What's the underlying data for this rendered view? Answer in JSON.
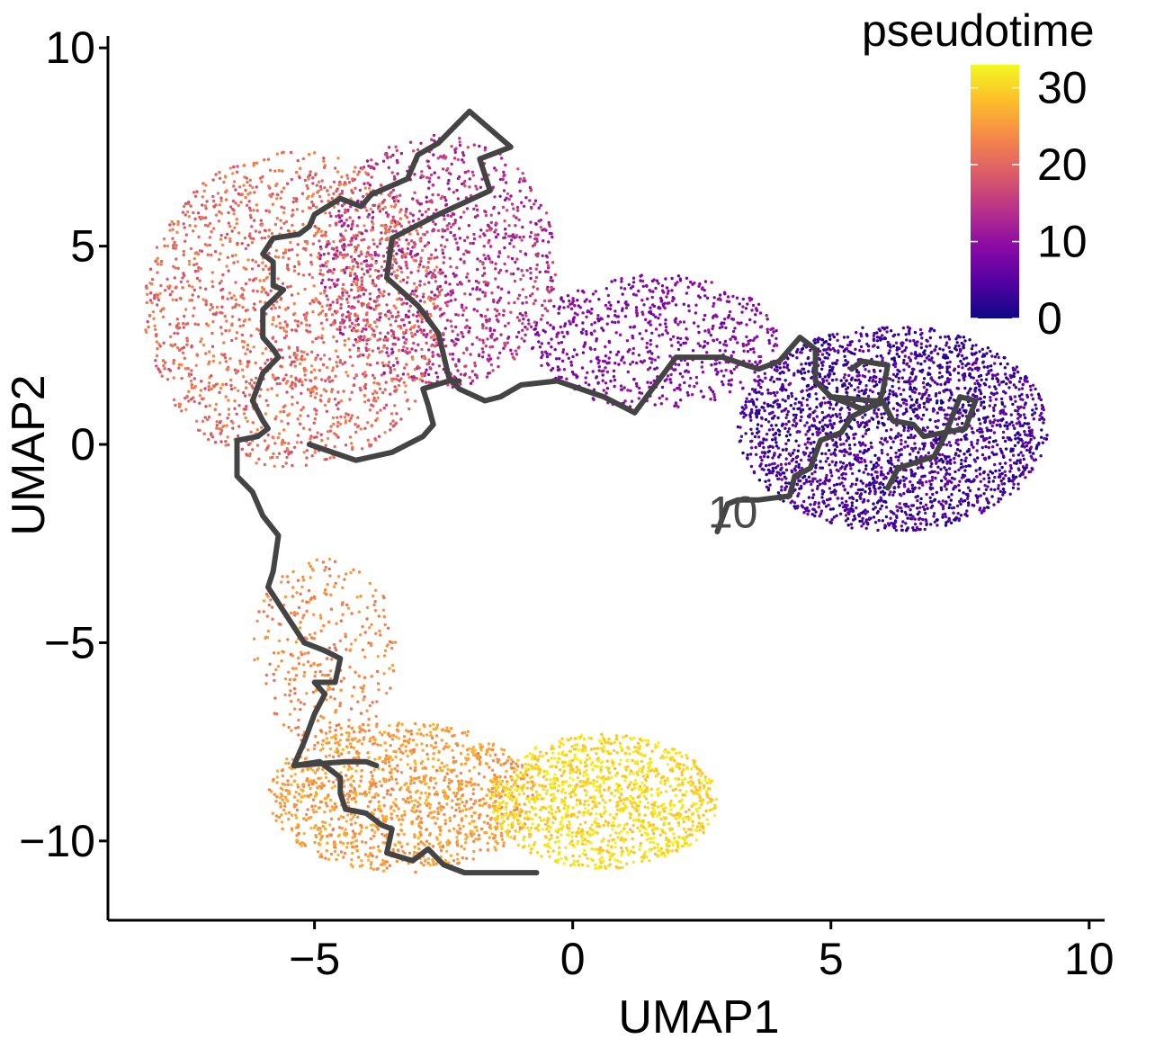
{
  "chart_data": {
    "type": "scatter",
    "xlabel": "UMAP1",
    "ylabel": "UMAP2",
    "xlim": [
      -9.0,
      10.3
    ],
    "ylim": [
      -12.0,
      10.3
    ],
    "x_ticks": [
      -5,
      0,
      5,
      10
    ],
    "y_ticks": [
      -10,
      -5,
      0,
      5,
      10
    ],
    "x_tick_labels": [
      "−5",
      "0",
      "5",
      "10"
    ],
    "y_tick_labels": [
      "−10",
      "−5",
      "0",
      "5",
      "10"
    ],
    "grid": false,
    "legend": {
      "title": "pseudotime",
      "position": "top-right",
      "type": "colorbar",
      "ticks": [
        0,
        10,
        20,
        30
      ],
      "labels": [
        "0",
        "10",
        "20",
        "30"
      ],
      "range": [
        0,
        33
      ]
    },
    "colormap": [
      "#0d0887",
      "#5302a3",
      "#8b0aa5",
      "#b83289",
      "#db5c68",
      "#f48849",
      "#febd2a",
      "#f0f921"
    ],
    "trajectory_color": "#444444",
    "node_labels": [
      {
        "text": "10",
        "x": 3.1,
        "y": -1.8
      }
    ],
    "regions": [
      {
        "name": "start-cluster",
        "cx": 6.2,
        "cy": 0.4,
        "rx": 3.0,
        "ry": 2.6,
        "pseudotime": [
          0,
          8
        ],
        "n": 2600
      },
      {
        "name": "bridge",
        "cx": 1.6,
        "cy": 2.6,
        "rx": 2.4,
        "ry": 1.7,
        "pseudotime": [
          7,
          11
        ],
        "n": 700
      },
      {
        "name": "upper-inner",
        "cx": -2.6,
        "cy": 4.6,
        "rx": 2.3,
        "ry": 3.2,
        "pseudotime": [
          10,
          18
        ],
        "n": 1200
      },
      {
        "name": "upper-left",
        "cx": -5.4,
        "cy": 3.4,
        "rx": 2.9,
        "ry": 4.0,
        "pseudotime": [
          17,
          24
        ],
        "n": 1700
      },
      {
        "name": "neck",
        "cx": -4.8,
        "cy": -5.2,
        "rx": 1.4,
        "ry": 2.4,
        "pseudotime": [
          21,
          26
        ],
        "n": 320
      },
      {
        "name": "lower-left",
        "cx": -3.3,
        "cy": -8.9,
        "rx": 2.6,
        "ry": 1.9,
        "pseudotime": [
          23,
          28
        ],
        "n": 1300
      },
      {
        "name": "lower-right",
        "cx": 0.6,
        "cy": -9.0,
        "rx": 2.2,
        "ry": 1.7,
        "pseudotime": [
          28,
          33
        ],
        "n": 1300
      }
    ],
    "trajectory": [
      [
        [
          -2.0,
          8.4
        ],
        [
          -1.2,
          7.5
        ],
        [
          -1.8,
          7.2
        ],
        [
          -1.6,
          6.4
        ],
        [
          -2.6,
          5.8
        ],
        [
          -3.5,
          5.2
        ],
        [
          -3.6,
          4.2
        ],
        [
          -3.0,
          3.5
        ],
        [
          -2.6,
          2.8
        ],
        [
          -2.4,
          1.7
        ],
        [
          -2.2,
          1.4
        ],
        [
          -1.7,
          1.1
        ],
        [
          -1.4,
          1.2
        ],
        [
          -1.0,
          1.5
        ],
        [
          -0.3,
          1.6
        ],
        [
          0.6,
          1.2
        ],
        [
          1.2,
          0.8
        ],
        [
          1.6,
          1.5
        ],
        [
          2.0,
          2.2
        ],
        [
          2.9,
          2.2
        ],
        [
          3.6,
          1.9
        ],
        [
          4.0,
          2.1
        ],
        [
          4.4,
          2.7
        ],
        [
          4.7,
          2.4
        ],
        [
          4.7,
          1.6
        ],
        [
          5.0,
          1.2
        ],
        [
          5.8,
          1.1
        ],
        [
          6.0,
          1.1
        ]
      ],
      [
        [
          -2.0,
          8.4
        ],
        [
          -2.6,
          7.6
        ],
        [
          -3.0,
          7.3
        ],
        [
          -3.2,
          6.7
        ],
        [
          -3.9,
          6.3
        ],
        [
          -4.1,
          6.0
        ],
        [
          -4.5,
          6.2
        ],
        [
          -5.0,
          5.8
        ],
        [
          -5.1,
          5.5
        ],
        [
          -5.3,
          5.3
        ],
        [
          -5.8,
          5.2
        ],
        [
          -6.0,
          4.8
        ],
        [
          -5.8,
          4.6
        ],
        [
          -5.8,
          4.0
        ],
        [
          -5.6,
          3.9
        ],
        [
          -6.0,
          3.4
        ],
        [
          -6.0,
          2.7
        ],
        [
          -5.8,
          2.4
        ],
        [
          -5.7,
          2.2
        ],
        [
          -6.0,
          1.8
        ],
        [
          -6.2,
          1.1
        ],
        [
          -6.0,
          0.6
        ],
        [
          -5.9,
          0.4
        ],
        [
          -6.1,
          0.2
        ],
        [
          -6.5,
          0.1
        ],
        [
          -6.5,
          -0.8
        ],
        [
          -6.2,
          -1.2
        ],
        [
          -6.0,
          -1.8
        ],
        [
          -5.7,
          -2.3
        ],
        [
          -5.8,
          -3.2
        ],
        [
          -5.9,
          -3.6
        ],
        [
          -5.6,
          -4.2
        ],
        [
          -5.2,
          -5.0
        ],
        [
          -4.8,
          -5.2
        ],
        [
          -4.5,
          -5.4
        ],
        [
          -4.6,
          -6.0
        ],
        [
          -5.0,
          -6.0
        ],
        [
          -4.8,
          -6.3
        ],
        [
          -5.0,
          -6.8
        ],
        [
          -5.2,
          -7.5
        ],
        [
          -5.4,
          -8.1
        ],
        [
          -4.9,
          -8.0
        ],
        [
          -4.5,
          -8.4
        ],
        [
          -4.5,
          -8.8
        ],
        [
          -4.4,
          -9.2
        ],
        [
          -4.0,
          -9.3
        ],
        [
          -3.7,
          -9.6
        ],
        [
          -3.5,
          -9.7
        ],
        [
          -3.6,
          -10.3
        ],
        [
          -3.1,
          -10.5
        ],
        [
          -2.8,
          -10.2
        ],
        [
          -2.5,
          -10.6
        ],
        [
          -2.1,
          -10.8
        ],
        [
          -1.3,
          -10.8
        ],
        [
          -0.7,
          -10.8
        ]
      ],
      [
        [
          -5.4,
          -8.1
        ],
        [
          -4.4,
          -8.0
        ],
        [
          -4.0,
          -8.0
        ],
        [
          -3.8,
          -8.1
        ]
      ],
      [
        [
          -5.1,
          0.0
        ],
        [
          -4.2,
          -0.4
        ],
        [
          -3.5,
          -0.2
        ],
        [
          -2.9,
          0.2
        ],
        [
          -2.7,
          0.5
        ],
        [
          -2.8,
          1.0
        ],
        [
          -2.9,
          1.4
        ],
        [
          -2.4,
          1.6
        ],
        [
          -2.2,
          1.6
        ]
      ],
      [
        [
          5.0,
          1.2
        ],
        [
          5.6,
          0.9
        ],
        [
          5.9,
          1.0
        ],
        [
          6.0,
          1.3
        ],
        [
          6.1,
          2.0
        ],
        [
          5.6,
          2.1
        ],
        [
          5.4,
          1.9
        ]
      ],
      [
        [
          6.0,
          1.1
        ],
        [
          6.2,
          0.6
        ],
        [
          6.6,
          0.5
        ],
        [
          6.8,
          0.2
        ],
        [
          7.6,
          0.4
        ],
        [
          7.8,
          1.1
        ],
        [
          7.5,
          1.2
        ],
        [
          7.2,
          0.2
        ],
        [
          7.0,
          -0.3
        ],
        [
          6.3,
          -0.6
        ],
        [
          6.1,
          -1.1
        ]
      ],
      [
        [
          6.0,
          1.1
        ],
        [
          5.4,
          0.7
        ],
        [
          5.2,
          0.3
        ],
        [
          4.8,
          0.1
        ],
        [
          4.6,
          -0.6
        ],
        [
          4.3,
          -0.8
        ],
        [
          4.2,
          -1.3
        ],
        [
          3.6,
          -1.4
        ],
        [
          3.2,
          -1.4
        ],
        [
          3.0,
          -1.5
        ],
        [
          2.8,
          -2.2
        ]
      ]
    ]
  }
}
